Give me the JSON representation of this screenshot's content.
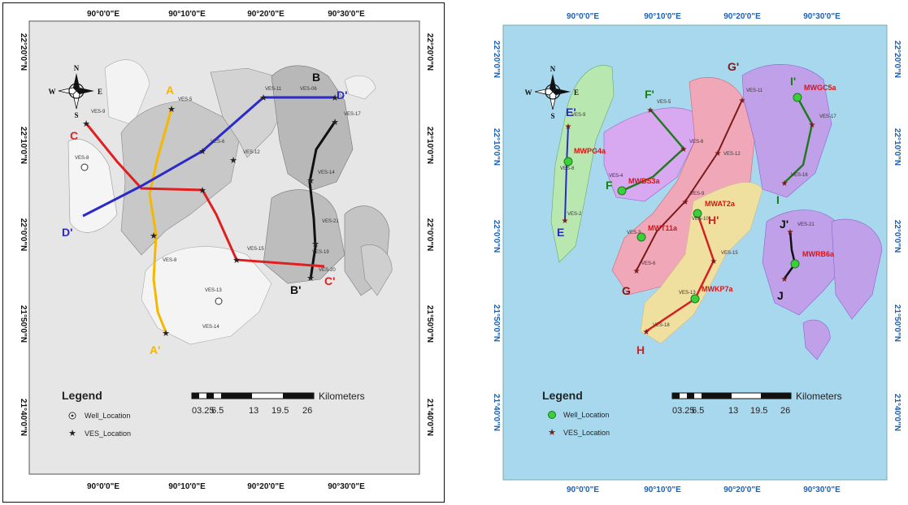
{
  "left_map": {
    "ticks_top": [
      "90°0'0\"E",
      "90°10'0\"E",
      "90°20'0\"E",
      "90°30'0\"E"
    ],
    "ticks_bottom": [
      "90°0'0\"E",
      "90°10'0\"E",
      "90°20'0\"E",
      "90°30'0\"E"
    ],
    "ticks_left": [
      "22°20'0\"N",
      "22°10'0\"N",
      "22°0'0\"N",
      "21°50'0\"N",
      "21°40'0\"N"
    ],
    "ticks_right": [
      "22°20'0\"N",
      "22°10'0\"N",
      "22°0'0\"N",
      "21°50'0\"N",
      "21°40'0\"N"
    ],
    "compass": {
      "n": "N",
      "s": "S",
      "e": "E",
      "w": "W"
    },
    "profiles": [
      {
        "start": "A",
        "end": "A'",
        "color": "#f5b800"
      },
      {
        "start": "B",
        "end": "B'",
        "color": "#111111"
      },
      {
        "start": "C",
        "end": "C'",
        "color": "#e02020"
      },
      {
        "start": "D'",
        "end": "D'",
        "color": "#2a2ac8"
      }
    ],
    "ves_labels": [
      "VES-9",
      "VES-8",
      "VES-11",
      "VES-06",
      "VES-17",
      "VES-5",
      "VES-12",
      "VES-6",
      "VES-14",
      "VES-19",
      "VES-21",
      "VES-15",
      "VES-20",
      "VES-13",
      "VES-14",
      "VES-8"
    ],
    "legend": {
      "title": "Legend",
      "well": "Well_Location",
      "ves": "VES_Location"
    },
    "scale": {
      "labels": [
        "03.25",
        "6.5",
        "13",
        "19.5",
        "26"
      ],
      "unit": "Kilometers"
    }
  },
  "right_map": {
    "ticks_top": [
      "90°0'0\"E",
      "90°10'0\"E",
      "90°20'0\"E",
      "90°30'0\"E"
    ],
    "ticks_bottom": [
      "90°0'0\"E",
      "90°10'0\"E",
      "90°20'0\"E",
      "90°30'0\"E"
    ],
    "ticks_left": [
      "22°20'0\"N",
      "22°10'0\"N",
      "22°0'0\"N",
      "21°50'0\"N",
      "21°40'0\"N"
    ],
    "ticks_right": [
      "22°20'0\"N",
      "22°10'0\"N",
      "22°0'0\"N",
      "21°50'0\"N",
      "21°40'0\"N"
    ],
    "compass": {
      "n": "N",
      "s": "S",
      "e": "E",
      "w": "W"
    },
    "profiles": [
      {
        "start": "E'",
        "end": "E",
        "color": "#2a2ac8"
      },
      {
        "start": "F'",
        "end": "F",
        "color": "#1f7a1f"
      },
      {
        "start": "G'",
        "end": "G",
        "color": "#7a1a1a"
      },
      {
        "start": "H'",
        "end": "H",
        "color": "#d42020"
      },
      {
        "start": "I'",
        "end": "I",
        "color": "#1f7a1f"
      },
      {
        "start": "J'",
        "end": "J",
        "color": "#111111"
      }
    ],
    "wells": [
      "MWPG4a",
      "MWBS3a",
      "MWT11a",
      "MWAT2a",
      "MWKP7a",
      "MWGC5a",
      "MWRB6a"
    ],
    "ves_labels": [
      "VES-9",
      "VES-8",
      "VES-11",
      "VES-5",
      "VES-12",
      "VES-6",
      "VES-4",
      "VES-9",
      "VES-10",
      "VES-17",
      "VES-16",
      "VES-15",
      "VES-3",
      "VES-6",
      "VES-2",
      "VES-13",
      "VES-21",
      "VES-18"
    ],
    "legend": {
      "title": "Legend",
      "well": "Well_Location",
      "ves": "VES_Location"
    },
    "scale": {
      "labels": [
        "03.25",
        "6.5",
        "13",
        "19.5",
        "26"
      ],
      "unit": "Kilometers"
    },
    "colors": {
      "sea": "#a8d8ee",
      "zone_green": "#b8e8b0",
      "zone_violet": "#d8a8f0",
      "zone_pink": "#f0a8b8",
      "zone_yellow": "#f0e0a0",
      "zone_purple": "#c0a0e8"
    }
  }
}
